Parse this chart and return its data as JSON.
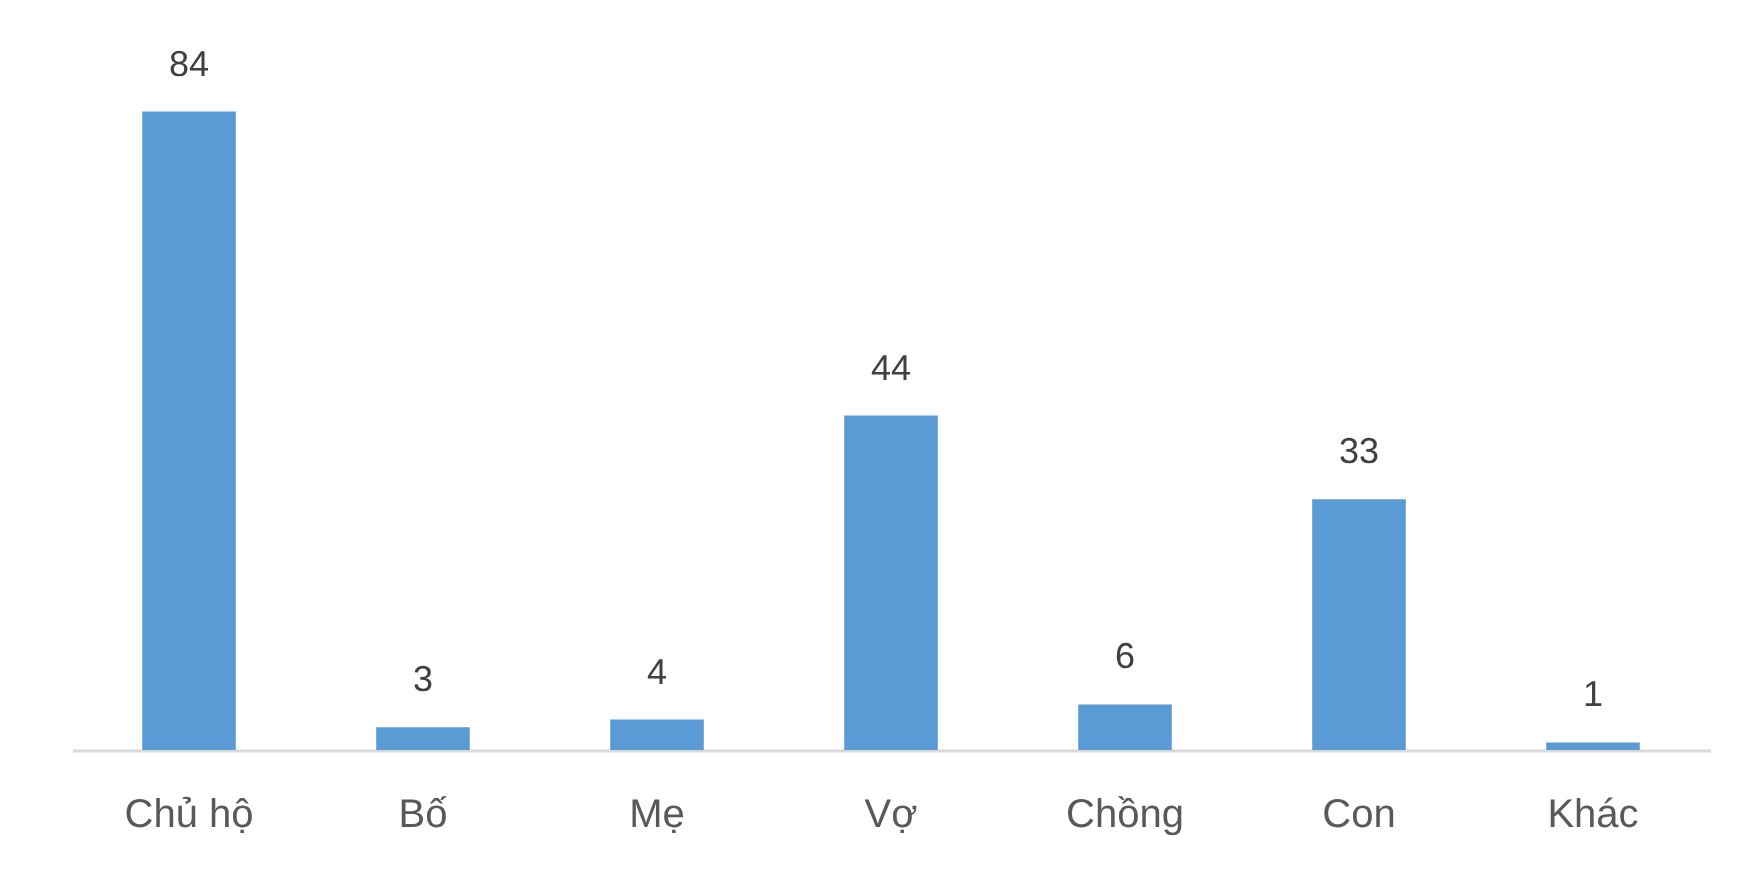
{
  "chart_data": {
    "type": "bar",
    "categories": [
      "Chủ hộ",
      "Bố",
      "Mẹ",
      "Vợ",
      "Chồng",
      "Con",
      "Khác"
    ],
    "values": [
      84,
      3,
      4,
      44,
      6,
      33,
      1
    ],
    "color": "#5b9bd5",
    "data_labels": true
  }
}
